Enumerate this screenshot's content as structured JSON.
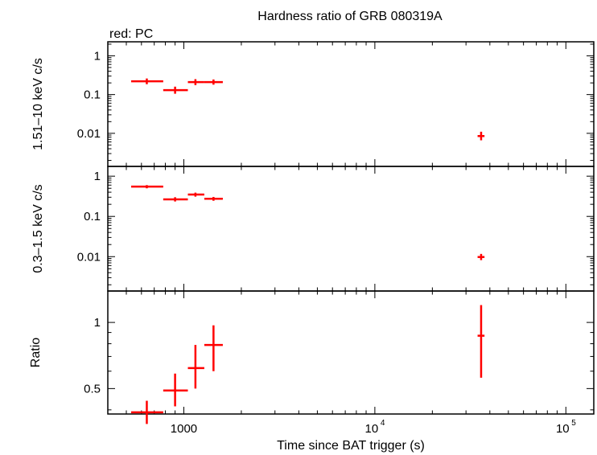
{
  "chart_data": {
    "type": "scatter",
    "title": "Hardness ratio of GRB 080319A",
    "subtitle": "red: PC",
    "xlabel": "Time since BAT trigger (s)",
    "x_scale": "log",
    "xlim": [
      400,
      140000
    ],
    "x_ticks": [
      {
        "value": 1000,
        "label": "1000",
        "base": "",
        "exp": ""
      },
      {
        "value": 10000,
        "label": "",
        "base": "10",
        "exp": "4"
      },
      {
        "value": 100000,
        "label": "",
        "base": "10",
        "exp": "5"
      }
    ],
    "series_color": "#ff0000",
    "panels": [
      {
        "id": "hard",
        "ylabel": "1.51–10 keV c/s",
        "y_scale": "log",
        "ylim": [
          0.0014,
          2.3
        ],
        "y_ticks": [
          {
            "value": 1,
            "label": "1"
          },
          {
            "value": 0.1,
            "label": "0.1"
          },
          {
            "value": 0.01,
            "label": "0.01"
          }
        ],
        "points": [
          {
            "x": 640,
            "xerr": [
              530,
              780
            ],
            "y": 0.22,
            "yerr": [
              0.185,
              0.26
            ]
          },
          {
            "x": 900,
            "xerr": [
              780,
              1050
            ],
            "y": 0.13,
            "yerr": [
              0.105,
              0.16
            ]
          },
          {
            "x": 1150,
            "xerr": [
              1050,
              1280
            ],
            "y": 0.21,
            "yerr": [
              0.175,
              0.25
            ]
          },
          {
            "x": 1430,
            "xerr": [
              1280,
              1600
            ],
            "y": 0.21,
            "yerr": [
              0.18,
              0.245
            ]
          },
          {
            "x": 36000,
            "xerr": [
              34500,
              37500
            ],
            "y": 0.0085,
            "yerr": [
              0.0066,
              0.011
            ]
          }
        ]
      },
      {
        "id": "soft",
        "ylabel": "0.3–1.5 keV c/s",
        "y_scale": "log",
        "ylim": [
          0.0014,
          1.75
        ],
        "y_ticks": [
          {
            "value": 1,
            "label": "1"
          },
          {
            "value": 0.1,
            "label": "0.1"
          },
          {
            "value": 0.01,
            "label": "0.01"
          }
        ],
        "points": [
          {
            "x": 640,
            "xerr": [
              530,
              780
            ],
            "y": 0.55,
            "yerr": [
              0.5,
              0.6
            ]
          },
          {
            "x": 900,
            "xerr": [
              780,
              1050
            ],
            "y": 0.265,
            "yerr": [
              0.235,
              0.3
            ]
          },
          {
            "x": 1150,
            "xerr": [
              1050,
              1280
            ],
            "y": 0.35,
            "yerr": [
              0.31,
              0.39
            ]
          },
          {
            "x": 1430,
            "xerr": [
              1280,
              1600
            ],
            "y": 0.275,
            "yerr": [
              0.245,
              0.305
            ]
          },
          {
            "x": 36000,
            "xerr": [
              34500,
              37500
            ],
            "y": 0.0098,
            "yerr": [
              0.0082,
              0.0117
            ]
          }
        ]
      },
      {
        "id": "ratio",
        "ylabel": "Ratio",
        "y_scale": "log",
        "ylim": [
          0.383,
          1.39
        ],
        "y_ticks": [
          {
            "value": 1,
            "label": "1"
          },
          {
            "value": 0.5,
            "label": "0.5"
          }
        ],
        "points": [
          {
            "x": 640,
            "xerr": [
              530,
              780
            ],
            "y": 0.39,
            "yerr": [
              0.345,
              0.44
            ]
          },
          {
            "x": 900,
            "xerr": [
              780,
              1050
            ],
            "y": 0.49,
            "yerr": [
              0.415,
              0.585
            ]
          },
          {
            "x": 1150,
            "xerr": [
              1050,
              1280
            ],
            "y": 0.62,
            "yerr": [
              0.5,
              0.79
            ]
          },
          {
            "x": 1430,
            "xerr": [
              1280,
              1600
            ],
            "y": 0.79,
            "yerr": [
              0.6,
              0.97
            ]
          },
          {
            "x": 36000,
            "xerr": [
              34500,
              37500
            ],
            "y": 0.87,
            "yerr": [
              0.56,
              1.2
            ]
          }
        ]
      }
    ]
  }
}
